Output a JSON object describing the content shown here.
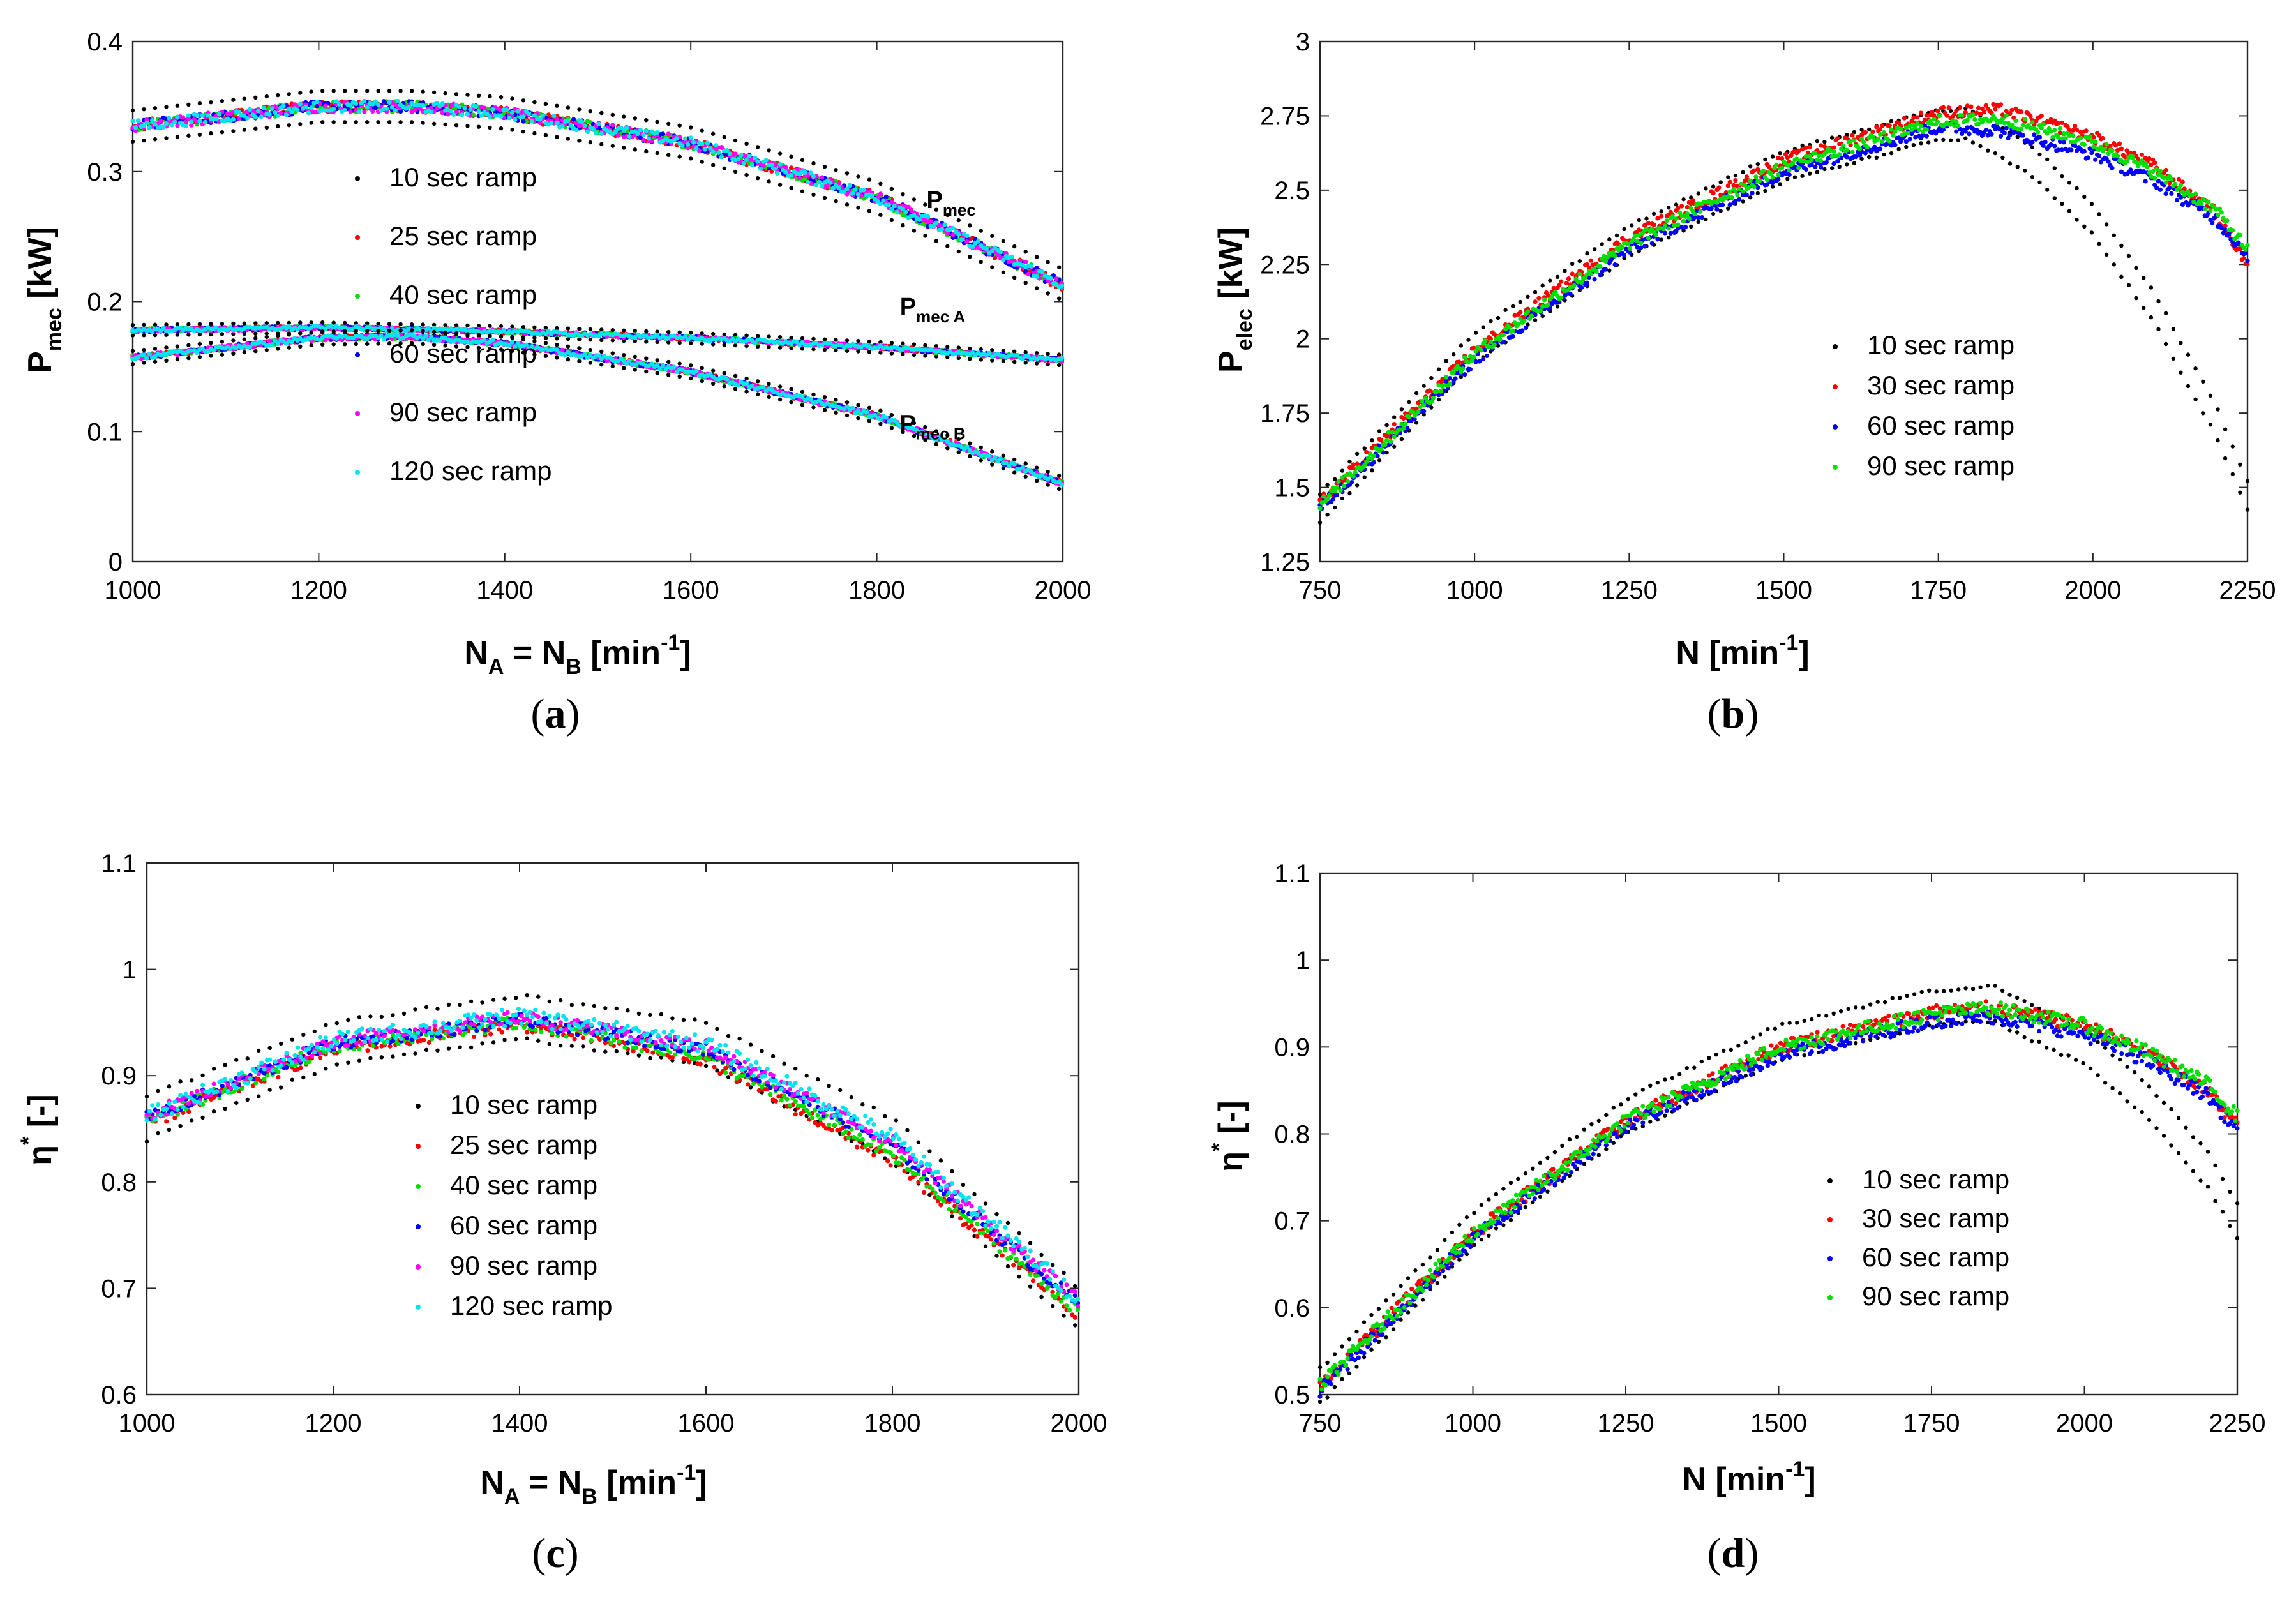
{
  "chart_data": [
    {
      "panel": "a",
      "type": "scatter",
      "caption_letter": "a",
      "xlabel": {
        "base": "N",
        "sub1": "A",
        "mid": " = N",
        "sub2": "B",
        "unit": " [min",
        "sup": "-1",
        "end": "]"
      },
      "ylabel": {
        "base": "P",
        "sub": "mec",
        "unit": " [kW]"
      },
      "xlim": [
        1000,
        2000
      ],
      "ylim": [
        0,
        0.4
      ],
      "xticks": [
        1000,
        1200,
        1400,
        1600,
        1800,
        2000
      ],
      "yticks": [
        0,
        0.1,
        0.2,
        0.3,
        0.4
      ],
      "ytick_labels": [
        "0",
        "0.1",
        "0.2",
        "0.3",
        "0.4"
      ],
      "legend": [
        "10 sec ramp",
        "25 sec ramp",
        "40 sec ramp",
        "60 sec ramp",
        "90 sec ramp",
        "120 sec ramp"
      ],
      "legend_colors": [
        "#000000",
        "#ff0000",
        "#00e000",
        "#0000ff",
        "#ff00ff",
        "#00e5ee"
      ],
      "annotations": [
        {
          "base": "P",
          "sub": "mec",
          "x": 1880,
          "y": 0.272
        },
        {
          "base": "P",
          "sub": "mec A",
          "x": 1860,
          "y": 0.19
        },
        {
          "base": "P",
          "sub": "mec B",
          "x": 1860,
          "y": 0.1
        }
      ],
      "curves": [
        {
          "name": "P_mec",
          "x": [
            1000,
            1200,
            1300,
            1400,
            1600,
            1800,
            2000
          ],
          "y": [
            0.335,
            0.35,
            0.35,
            0.345,
            0.322,
            0.28,
            0.213
          ],
          "spread": 0.012
        },
        {
          "name": "P_mec_A",
          "x": [
            1000,
            1200,
            1400,
            1600,
            1800,
            2000
          ],
          "y": [
            0.178,
            0.18,
            0.177,
            0.172,
            0.165,
            0.155
          ],
          "spread": 0.004
        },
        {
          "name": "P_mec_B",
          "x": [
            1000,
            1200,
            1300,
            1400,
            1600,
            1800,
            2000
          ],
          "y": [
            0.157,
            0.172,
            0.173,
            0.168,
            0.146,
            0.112,
            0.06
          ],
          "spread": 0.005
        }
      ]
    },
    {
      "panel": "b",
      "type": "scatter",
      "caption_letter": "b",
      "xlabel": {
        "base": "N",
        "unit": " [min",
        "sup": "-1",
        "end": "]"
      },
      "ylabel": {
        "base": "P",
        "sub": "elec",
        "unit": " [kW]"
      },
      "xlim": [
        750,
        2250
      ],
      "ylim": [
        1.25,
        3
      ],
      "xticks": [
        750,
        1000,
        1250,
        1500,
        1750,
        2000,
        2250
      ],
      "yticks": [
        1.25,
        1.5,
        1.75,
        2,
        2.25,
        2.5,
        2.75,
        3
      ],
      "ytick_labels": [
        "1.25",
        "1.5",
        "1.75",
        "2",
        "2.25",
        "2.5",
        "2.75",
        "3"
      ],
      "legend": [
        "10 sec ramp",
        "30 sec ramp",
        "60 sec ramp",
        "90 sec ramp"
      ],
      "legend_colors": [
        "#000000",
        "#ff0000",
        "#0000ff",
        "#00e000"
      ],
      "series": [
        {
          "name": "10 sec ramp",
          "x": [
            750,
            1000,
            1250,
            1500,
            1750,
            1800,
            1900,
            2000,
            2100,
            2200,
            2250
          ],
          "y": [
            1.43,
            1.97,
            2.33,
            2.58,
            2.72,
            2.72,
            2.6,
            2.4,
            2.1,
            1.72,
            1.47
          ],
          "spread": 0.05
        },
        {
          "name": "30 sec ramp",
          "x": [
            750,
            1000,
            1250,
            1500,
            1750,
            1850,
            2000,
            2100,
            2200,
            2250
          ],
          "y": [
            1.45,
            1.96,
            2.34,
            2.6,
            2.76,
            2.77,
            2.68,
            2.58,
            2.42,
            2.25
          ],
          "spread": 0.02
        },
        {
          "name": "60 sec ramp",
          "x": [
            750,
            1000,
            1250,
            1500,
            1750,
            1850,
            2000,
            2100,
            2200,
            2250
          ],
          "y": [
            1.43,
            1.93,
            2.3,
            2.56,
            2.71,
            2.7,
            2.62,
            2.53,
            2.4,
            2.28
          ],
          "spread": 0.02
        },
        {
          "name": "90 sec ramp",
          "x": [
            750,
            1000,
            1250,
            1500,
            1750,
            1850,
            2000,
            2100,
            2200,
            2250
          ],
          "y": [
            1.44,
            1.95,
            2.32,
            2.58,
            2.73,
            2.74,
            2.66,
            2.56,
            2.43,
            2.3
          ],
          "spread": 0.02
        }
      ]
    },
    {
      "panel": "c",
      "type": "scatter",
      "caption_letter": "c",
      "xlabel": {
        "base": "N",
        "sub1": "A",
        "mid": " = N",
        "sub2": "B",
        "unit": " [min",
        "sup": "-1",
        "end": "]"
      },
      "ylabel": {
        "base": "η",
        "sup": "*",
        "unit": " [-]"
      },
      "xlim": [
        1000,
        2000
      ],
      "ylim": [
        0.6,
        1.1
      ],
      "xticks": [
        1000,
        1200,
        1400,
        1600,
        1800,
        2000
      ],
      "yticks": [
        0.6,
        0.7,
        0.8,
        0.9,
        1,
        1.1
      ],
      "ytick_labels": [
        "0.6",
        "0.7",
        "0.8",
        "0.9",
        "1",
        "1.1"
      ],
      "legend": [
        "10 sec ramp",
        "25 sec ramp",
        "40 sec ramp",
        "60 sec ramp",
        "90 sec ramp",
        "120 sec ramp"
      ],
      "legend_colors": [
        "#000000",
        "#ff0000",
        "#00e000",
        "#0000ff",
        "#ff00ff",
        "#00e5ee"
      ],
      "series": [
        {
          "name": "10 sec ramp",
          "x": [
            1000,
            1200,
            1400,
            1600,
            1800,
            2000
          ],
          "y": [
            0.86,
            0.93,
            0.955,
            0.93,
            0.84,
            0.68
          ],
          "spread": 0.02
        },
        {
          "name": "25 sec ramp",
          "x": [
            1000,
            1200,
            1400,
            1600,
            1800,
            2000
          ],
          "y": [
            0.855,
            0.925,
            0.948,
            0.915,
            0.82,
            0.675
          ],
          "spread": 0.006
        },
        {
          "name": "40 sec ramp",
          "x": [
            1000,
            1200,
            1400,
            1600,
            1800,
            2000
          ],
          "y": [
            0.857,
            0.928,
            0.95,
            0.918,
            0.825,
            0.678
          ],
          "spread": 0.006
        },
        {
          "name": "60 sec ramp",
          "x": [
            1000,
            1200,
            1400,
            1600,
            1800,
            2000
          ],
          "y": [
            0.86,
            0.93,
            0.952,
            0.925,
            0.835,
            0.685
          ],
          "spread": 0.006
        },
        {
          "name": "90 sec ramp",
          "x": [
            1000,
            1200,
            1400,
            1600,
            1800,
            2000
          ],
          "y": [
            0.862,
            0.932,
            0.955,
            0.927,
            0.838,
            0.688
          ],
          "spread": 0.006
        },
        {
          "name": "120 sec ramp",
          "x": [
            1000,
            1200,
            1400,
            1600,
            1800,
            2000
          ],
          "y": [
            0.862,
            0.933,
            0.956,
            0.93,
            0.842,
            0.69
          ],
          "spread": 0.008
        }
      ]
    },
    {
      "panel": "d",
      "type": "scatter",
      "caption_letter": "d",
      "xlabel": {
        "base": "N",
        "unit": " [min",
        "sup": "-1",
        "end": "]"
      },
      "ylabel": {
        "base": "η",
        "sup": "*",
        "unit": " [-]"
      },
      "xlim": [
        750,
        2250
      ],
      "ylim": [
        0.5,
        1.1
      ],
      "xticks": [
        750,
        1000,
        1250,
        1500,
        1750,
        2000,
        2250
      ],
      "yticks": [
        0.5,
        0.6,
        0.7,
        0.8,
        0.9,
        1,
        1.1
      ],
      "ytick_labels": [
        "0.5",
        "0.6",
        "0.7",
        "0.8",
        "0.9",
        "1",
        "1.1"
      ],
      "legend": [
        "10 sec ramp",
        "30 sec ramp",
        "60 sec ramp",
        "90 sec ramp"
      ],
      "legend_colors": [
        "#000000",
        "#ff0000",
        "#0000ff",
        "#00e000"
      ],
      "series": [
        {
          "name": "10 sec ramp",
          "x": [
            750,
            1000,
            1250,
            1500,
            1750,
            1850,
            2000,
            2100,
            2200,
            2250
          ],
          "y": [
            0.51,
            0.69,
            0.82,
            0.905,
            0.945,
            0.95,
            0.9,
            0.84,
            0.76,
            0.7
          ],
          "spread": 0.02
        },
        {
          "name": "30 sec ramp",
          "x": [
            750,
            1000,
            1250,
            1500,
            1750,
            1850,
            2000,
            2100,
            2200,
            2250
          ],
          "y": [
            0.51,
            0.685,
            0.815,
            0.9,
            0.94,
            0.945,
            0.925,
            0.895,
            0.85,
            0.81
          ],
          "spread": 0.008
        },
        {
          "name": "60 sec ramp",
          "x": [
            750,
            1000,
            1250,
            1500,
            1750,
            1850,
            2000,
            2100,
            2200,
            2250
          ],
          "y": [
            0.505,
            0.68,
            0.81,
            0.89,
            0.93,
            0.935,
            0.915,
            0.885,
            0.845,
            0.805
          ],
          "spread": 0.008
        },
        {
          "name": "90 sec ramp",
          "x": [
            750,
            1000,
            1250,
            1500,
            1750,
            1850,
            2000,
            2100,
            2200,
            2250
          ],
          "y": [
            0.51,
            0.685,
            0.815,
            0.9,
            0.938,
            0.945,
            0.925,
            0.895,
            0.858,
            0.82
          ],
          "spread": 0.008
        }
      ]
    }
  ]
}
